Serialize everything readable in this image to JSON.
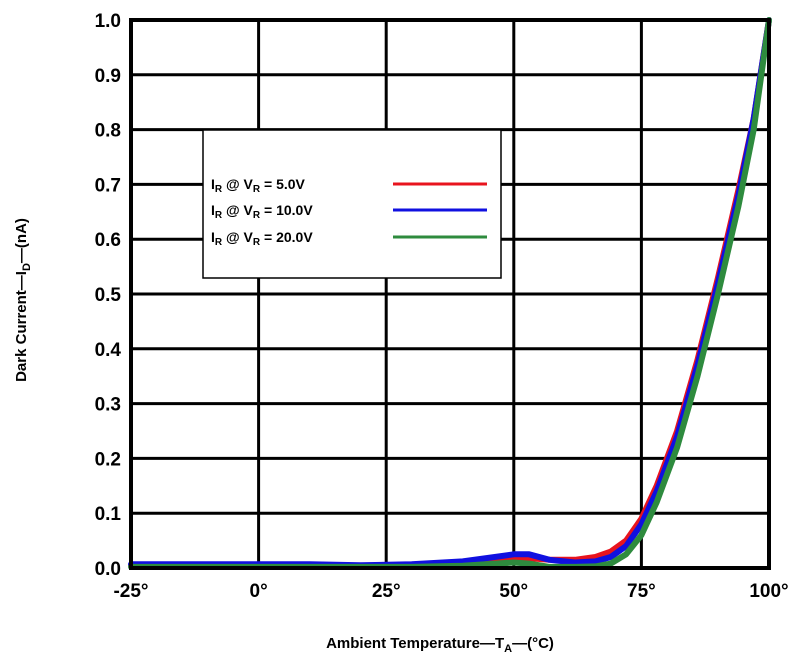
{
  "chart_data": {
    "type": "line",
    "xlabel": {
      "pre": "Ambient Temperature—T",
      "sub": "A",
      "post": "—(°C)"
    },
    "ylabel": {
      "pre": "Dark Current—I",
      "sub": "D",
      "post": "—(nA)"
    },
    "xlim": [
      -25,
      100
    ],
    "ylim": [
      0,
      1.0
    ],
    "x_ticks": [
      -25,
      0,
      25,
      50,
      75,
      100
    ],
    "x_tick_labels": [
      "-25°",
      "0°",
      "25°",
      "50°",
      "75°",
      "100°"
    ],
    "y_ticks": [
      0,
      0.1,
      0.2,
      0.3,
      0.4,
      0.5,
      0.6,
      0.7,
      0.8,
      0.9,
      1.0
    ],
    "y_tick_labels": [
      "0.0",
      "0.1",
      "0.2",
      "0.3",
      "0.4",
      "0.5",
      "0.6",
      "0.7",
      "0.8",
      "0.9",
      "1.0"
    ],
    "grid": true,
    "legend_position": "upper-left inside plot",
    "series": [
      {
        "name": {
          "a": "I",
          "a_sub": "R",
          "mid": " @ V",
          "b_sub": "R",
          "post": " = 5.0V"
        },
        "color": "#e8141e",
        "x": [
          -25,
          0,
          10,
          20,
          30,
          40,
          50,
          53,
          57,
          62,
          66,
          69,
          72,
          75,
          78,
          82,
          86,
          90,
          94,
          97,
          100
        ],
        "y": [
          0.005,
          0.005,
          0.005,
          0.004,
          0.005,
          0.008,
          0.015,
          0.018,
          0.015,
          0.015,
          0.02,
          0.03,
          0.05,
          0.09,
          0.15,
          0.25,
          0.38,
          0.53,
          0.69,
          0.82,
          1.0
        ]
      },
      {
        "name": {
          "a": "I",
          "a_sub": "R",
          "mid": " @ V",
          "b_sub": "R",
          "post": " = 10.0V"
        },
        "color": "#1010e0",
        "x": [
          -25,
          0,
          10,
          20,
          30,
          40,
          50,
          53,
          57,
          62,
          66,
          69,
          72,
          75,
          78,
          82,
          86,
          90,
          94,
          97,
          100
        ],
        "y": [
          0.007,
          0.007,
          0.007,
          0.005,
          0.007,
          0.012,
          0.025,
          0.025,
          0.015,
          0.01,
          0.012,
          0.02,
          0.04,
          0.08,
          0.14,
          0.24,
          0.37,
          0.52,
          0.68,
          0.82,
          1.0
        ]
      },
      {
        "name": {
          "a": "I",
          "a_sub": "R",
          "mid": " @ V",
          "b_sub": "R",
          "post": " = 20.0V"
        },
        "color": "#2e8b3e",
        "x": [
          -25,
          0,
          10,
          20,
          30,
          40,
          50,
          53,
          57,
          62,
          66,
          69,
          72,
          75,
          78,
          82,
          86,
          90,
          94,
          97,
          100
        ],
        "y": [
          0.002,
          0.002,
          0.002,
          0.002,
          0.002,
          0.004,
          0.01,
          0.008,
          0.002,
          0.002,
          0.003,
          0.008,
          0.025,
          0.06,
          0.12,
          0.22,
          0.35,
          0.5,
          0.66,
          0.8,
          1.0
        ]
      }
    ]
  }
}
